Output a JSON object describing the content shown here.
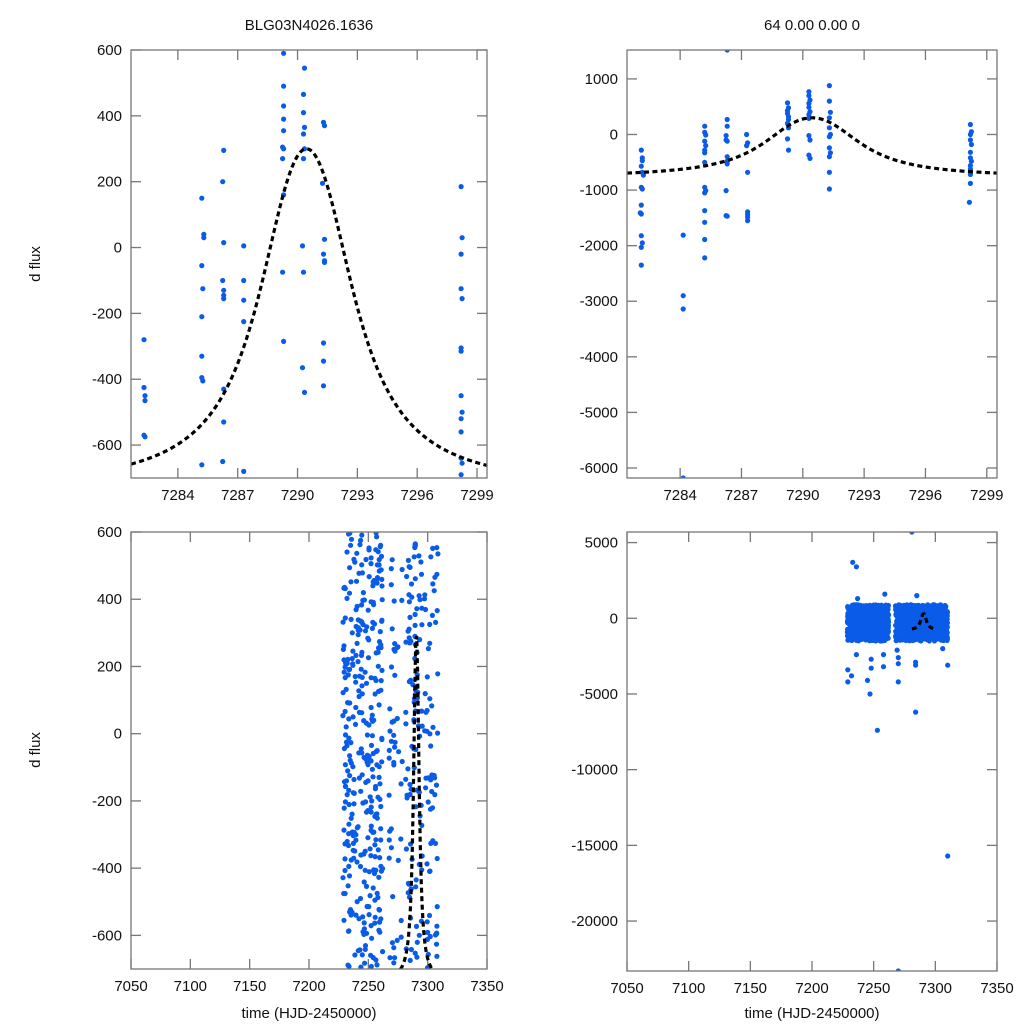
{
  "chart_data": [
    {
      "type": "scatter",
      "panel": "top-left",
      "title": "BLG03N4026.1636",
      "xlabel": "",
      "ylabel": "d flux",
      "xlim": [
        7281.65,
        7299.5
      ],
      "ylim": [
        -700,
        600
      ],
      "xticks": [
        7284,
        7287,
        7290,
        7293,
        7296,
        7299
      ],
      "yticks": [
        600,
        400,
        200,
        0,
        -200,
        -400,
        -600
      ],
      "xtick_labels": [
        "7284",
        "7287",
        "7290",
        "7293",
        "7296",
        "7299"
      ],
      "ytick_labels": [
        "600",
        "400",
        "200",
        "0",
        "-200",
        "-400",
        "-600"
      ],
      "grid": false,
      "series": [
        {
          "name": "data",
          "color": "#0a5ce8",
          "marker": "dot",
          "points": [
            [
              7282.3,
              -280
            ],
            [
              7282.3,
              -425
            ],
            [
              7282.35,
              -450
            ],
            [
              7282.35,
              -465
            ],
            [
              7282.3,
              -570
            ],
            [
              7282.35,
              -575
            ],
            [
              7285.2,
              150
            ],
            [
              7285.3,
              30
            ],
            [
              7285.3,
              40
            ],
            [
              7285.2,
              -55
            ],
            [
              7285.25,
              -125
            ],
            [
              7285.2,
              -210
            ],
            [
              7285.2,
              -330
            ],
            [
              7285.2,
              -395
            ],
            [
              7285.25,
              -405
            ],
            [
              7285.2,
              -660
            ],
            [
              7286.3,
              295
            ],
            [
              7286.25,
              200
            ],
            [
              7286.3,
              15
            ],
            [
              7286.25,
              -100
            ],
            [
              7286.3,
              -130
            ],
            [
              7286.3,
              -145
            ],
            [
              7286.3,
              -155
            ],
            [
              7286.3,
              -430
            ],
            [
              7286.3,
              -530
            ],
            [
              7286.25,
              -650
            ],
            [
              7287.3,
              5
            ],
            [
              7287.3,
              -100
            ],
            [
              7287.3,
              -160
            ],
            [
              7287.3,
              -225
            ],
            [
              7287.3,
              -680
            ],
            [
              7289.3,
              590
            ],
            [
              7289.3,
              490
            ],
            [
              7289.3,
              430
            ],
            [
              7289.3,
              390
            ],
            [
              7289.3,
              355
            ],
            [
              7289.25,
              305
            ],
            [
              7289.3,
              300
            ],
            [
              7289.25,
              270
            ],
            [
              7289.3,
              160
            ],
            [
              7289.25,
              -75
            ],
            [
              7289.3,
              -285
            ],
            [
              7290.35,
              545
            ],
            [
              7290.3,
              465
            ],
            [
              7290.3,
              410
            ],
            [
              7290.35,
              365
            ],
            [
              7290.3,
              345
            ],
            [
              7290.35,
              300
            ],
            [
              7290.3,
              270
            ],
            [
              7290.25,
              5
            ],
            [
              7290.3,
              -75
            ],
            [
              7290.25,
              -365
            ],
            [
              7290.35,
              -440
            ],
            [
              7291.3,
              380
            ],
            [
              7291.35,
              370
            ],
            [
              7291.25,
              195
            ],
            [
              7291.35,
              25
            ],
            [
              7291.3,
              -20
            ],
            [
              7291.35,
              -40
            ],
            [
              7291.35,
              -45
            ],
            [
              7291.3,
              -290
            ],
            [
              7291.3,
              -345
            ],
            [
              7291.3,
              -420
            ],
            [
              7298.2,
              185
            ],
            [
              7298.25,
              30
            ],
            [
              7298.2,
              -20
            ],
            [
              7298.2,
              -125
            ],
            [
              7298.25,
              -155
            ],
            [
              7298.2,
              -305
            ],
            [
              7298.2,
              -315
            ],
            [
              7298.2,
              -450
            ],
            [
              7298.25,
              -500
            ],
            [
              7298.2,
              -520
            ],
            [
              7298.2,
              -560
            ],
            [
              7298.2,
              -640
            ],
            [
              7298.25,
              -655
            ],
            [
              7298.2,
              -690
            ]
          ]
        },
        {
          "name": "model",
          "style": "dashed",
          "color": "#000000",
          "peak_t": 7290.45,
          "peak_value": 300,
          "baseline": -735,
          "width_days": 2.4
        }
      ]
    },
    {
      "type": "scatter",
      "panel": "top-right",
      "title": "64  0.00  0.00  0",
      "xlabel": "",
      "ylabel": "",
      "xlim": [
        7281.4,
        7299.5
      ],
      "ylim": [
        -6180,
        1520
      ],
      "xticks": [
        7284,
        7287,
        7290,
        7293,
        7296,
        7299
      ],
      "yticks": [
        1000,
        0,
        -1000,
        -2000,
        -3000,
        -4000,
        -5000,
        -6000
      ],
      "xtick_labels": [
        "7284",
        "7287",
        "7290",
        "7293",
        "7296",
        "7299"
      ],
      "ytick_labels": [
        "1000",
        "0",
        "-1000",
        "-2000",
        "-3000",
        "-4000",
        "-5000",
        "-6000"
      ],
      "grid": false,
      "series": [
        {
          "name": "data",
          "color": "#0a5ce8",
          "marker": "dot",
          "points": [
            [
              7282.1,
              -280
            ],
            [
              7282.15,
              -420
            ],
            [
              7282.15,
              -470
            ],
            [
              7282.1,
              -570
            ],
            [
              7282.15,
              -680
            ],
            [
              7282.2,
              -730
            ],
            [
              7282.1,
              -950
            ],
            [
              7282.15,
              -980
            ],
            [
              7282.1,
              -1270
            ],
            [
              7282.05,
              -1410
            ],
            [
              7282.1,
              -1430
            ],
            [
              7282.1,
              -1820
            ],
            [
              7282.15,
              -1950
            ],
            [
              7282.1,
              -2030
            ],
            [
              7282.1,
              -2350
            ],
            [
              7284.15,
              -1810
            ],
            [
              7284.15,
              -2900
            ],
            [
              7284.15,
              -3140
            ],
            [
              7284.15,
              -6180
            ],
            [
              7285.2,
              150
            ],
            [
              7285.2,
              40
            ],
            [
              7285.25,
              -10
            ],
            [
              7285.2,
              -120
            ],
            [
              7285.25,
              -200
            ],
            [
              7285.2,
              -280
            ],
            [
              7285.2,
              -330
            ],
            [
              7285.2,
              -500
            ],
            [
              7285.2,
              -950
            ],
            [
              7285.25,
              -1010
            ],
            [
              7285.2,
              -1050
            ],
            [
              7285.2,
              -1370
            ],
            [
              7285.2,
              -1580
            ],
            [
              7285.2,
              -1890
            ],
            [
              7285.2,
              -2220
            ],
            [
              7286.3,
              1520
            ],
            [
              7286.3,
              270
            ],
            [
              7286.3,
              150
            ],
            [
              7286.25,
              -20
            ],
            [
              7286.25,
              -100
            ],
            [
              7286.3,
              -120
            ],
            [
              7286.3,
              -400
            ],
            [
              7286.3,
              -480
            ],
            [
              7286.3,
              -530
            ],
            [
              7286.25,
              -1010
            ],
            [
              7286.25,
              -1460
            ],
            [
              7286.3,
              -1470
            ],
            [
              7287.25,
              0
            ],
            [
              7287.3,
              -150
            ],
            [
              7287.25,
              -200
            ],
            [
              7287.3,
              -680
            ],
            [
              7287.3,
              -1390
            ],
            [
              7287.3,
              -1440
            ],
            [
              7287.3,
              -1490
            ],
            [
              7287.3,
              -1550
            ],
            [
              7289.25,
              570
            ],
            [
              7289.3,
              480
            ],
            [
              7289.25,
              430
            ],
            [
              7289.25,
              380
            ],
            [
              7289.3,
              320
            ],
            [
              7289.3,
              270
            ],
            [
              7289.25,
              200
            ],
            [
              7289.3,
              120
            ],
            [
              7289.25,
              -80
            ],
            [
              7289.3,
              -280
            ],
            [
              7290.3,
              770
            ],
            [
              7290.3,
              700
            ],
            [
              7290.35,
              620
            ],
            [
              7290.3,
              560
            ],
            [
              7290.3,
              490
            ],
            [
              7290.35,
              410
            ],
            [
              7290.3,
              360
            ],
            [
              7290.3,
              290
            ],
            [
              7290.3,
              -20
            ],
            [
              7290.35,
              -100
            ],
            [
              7290.3,
              -370
            ],
            [
              7290.35,
              -430
            ],
            [
              7291.3,
              880
            ],
            [
              7291.3,
              600
            ],
            [
              7291.35,
              400
            ],
            [
              7291.3,
              300
            ],
            [
              7291.3,
              120
            ],
            [
              7291.35,
              0
            ],
            [
              7291.3,
              -40
            ],
            [
              7291.3,
              -240
            ],
            [
              7291.35,
              -330
            ],
            [
              7291.3,
              -400
            ],
            [
              7291.3,
              -680
            ],
            [
              7291.3,
              -980
            ],
            [
              7298.2,
              180
            ],
            [
              7298.25,
              50
            ],
            [
              7298.2,
              0
            ],
            [
              7298.2,
              -100
            ],
            [
              7298.25,
              -180
            ],
            [
              7298.2,
              -320
            ],
            [
              7298.2,
              -420
            ],
            [
              7298.25,
              -480
            ],
            [
              7298.2,
              -560
            ],
            [
              7298.2,
              -620
            ],
            [
              7298.2,
              -720
            ],
            [
              7298.2,
              -880
            ],
            [
              7298.15,
              -1220
            ]
          ]
        },
        {
          "name": "model",
          "style": "dashed",
          "color": "#000000",
          "peak_t": 7290.45,
          "peak_value": 300,
          "baseline": -770,
          "width_days": 2.4
        }
      ]
    },
    {
      "type": "scatter",
      "panel": "bottom-left",
      "title": "",
      "xlabel": "time (HJD-2450000)",
      "ylabel": "d flux",
      "xlim": [
        7050,
        7350
      ],
      "ylim": [
        -700,
        600
      ],
      "xticks": [
        7050,
        7100,
        7150,
        7200,
        7250,
        7300,
        7350
      ],
      "yticks": [
        600,
        400,
        200,
        0,
        -200,
        -400,
        -600
      ],
      "xtick_labels": [
        "7050",
        "7100",
        "7150",
        "7200",
        "7250",
        "7300",
        "7350"
      ],
      "ytick_labels": [
        "600",
        "400",
        "200",
        "0",
        "-200",
        "-400",
        "-600"
      ],
      "grid": false,
      "series": [
        {
          "name": "data",
          "color": "#0a5ce8",
          "marker": "dot",
          "generated_cluster": true,
          "clusters_time_ranges": [
            [
              7228,
              7262
            ],
            [
              7268,
              7280
            ],
            [
              7282,
              7295
            ],
            [
              7298,
              7310
            ]
          ]
        },
        {
          "name": "model",
          "style": "dashed",
          "color": "#000000",
          "peak_t": 7290.45,
          "peak_value": 300,
          "baseline": -735,
          "width_days": 2.4
        }
      ]
    },
    {
      "type": "scatter",
      "panel": "bottom-right",
      "title": "",
      "xlabel": "time (HJD-2450000)",
      "ylabel": "",
      "xlim": [
        7050,
        7350
      ],
      "ylim": [
        -23300,
        5700
      ],
      "xticks": [
        7050,
        7100,
        7150,
        7200,
        7250,
        7300,
        7350
      ],
      "yticks": [
        5000,
        0,
        -5000,
        -10000,
        -15000,
        -20000
      ],
      "xtick_labels": [
        "7050",
        "7100",
        "7150",
        "7200",
        "7250",
        "7300",
        "7350"
      ],
      "ytick_labels": [
        "5000",
        "0",
        "-5000",
        "-10000",
        "-15000",
        "-20000"
      ],
      "grid": false,
      "series": [
        {
          "name": "data",
          "color": "#0a5ce8",
          "marker": "dot",
          "generated_cluster": true,
          "core_range": [
            -1500,
            1000
          ],
          "outliers": [
            [
              7281,
              5700
            ],
            [
              7233,
              3700
            ],
            [
              7236,
              3400
            ],
            [
              7237,
              1300
            ],
            [
              7259,
              1600
            ],
            [
              7285,
              1500
            ],
            [
              7229,
              -3400
            ],
            [
              7229,
              -4200
            ],
            [
              7232,
              -3800
            ],
            [
              7236,
              -2400
            ],
            [
              7245,
              -4100
            ],
            [
              7248,
              -2700
            ],
            [
              7248,
              -3300
            ],
            [
              7247,
              -5000
            ],
            [
              7258,
              -2400
            ],
            [
              7258,
              -3200
            ],
            [
              7253,
              -7400
            ],
            [
              7270,
              -2600
            ],
            [
              7270,
              -3000
            ],
            [
              7270,
              -4200
            ],
            [
              7269,
              -2100
            ],
            [
              7284,
              -2900
            ],
            [
              7284,
              -3100
            ],
            [
              7284,
              -6200
            ],
            [
              7306,
              -2000
            ],
            [
              7310,
              -3100
            ],
            [
              7310,
              -15700
            ],
            [
              7270,
              -23300
            ]
          ]
        },
        {
          "name": "model",
          "style": "dashed",
          "color": "#000000",
          "peak_t": 7290.45,
          "peak_value": 300,
          "baseline": -770,
          "width_days": 2.4,
          "t_range": [
            7281,
            7299
          ]
        }
      ]
    }
  ]
}
